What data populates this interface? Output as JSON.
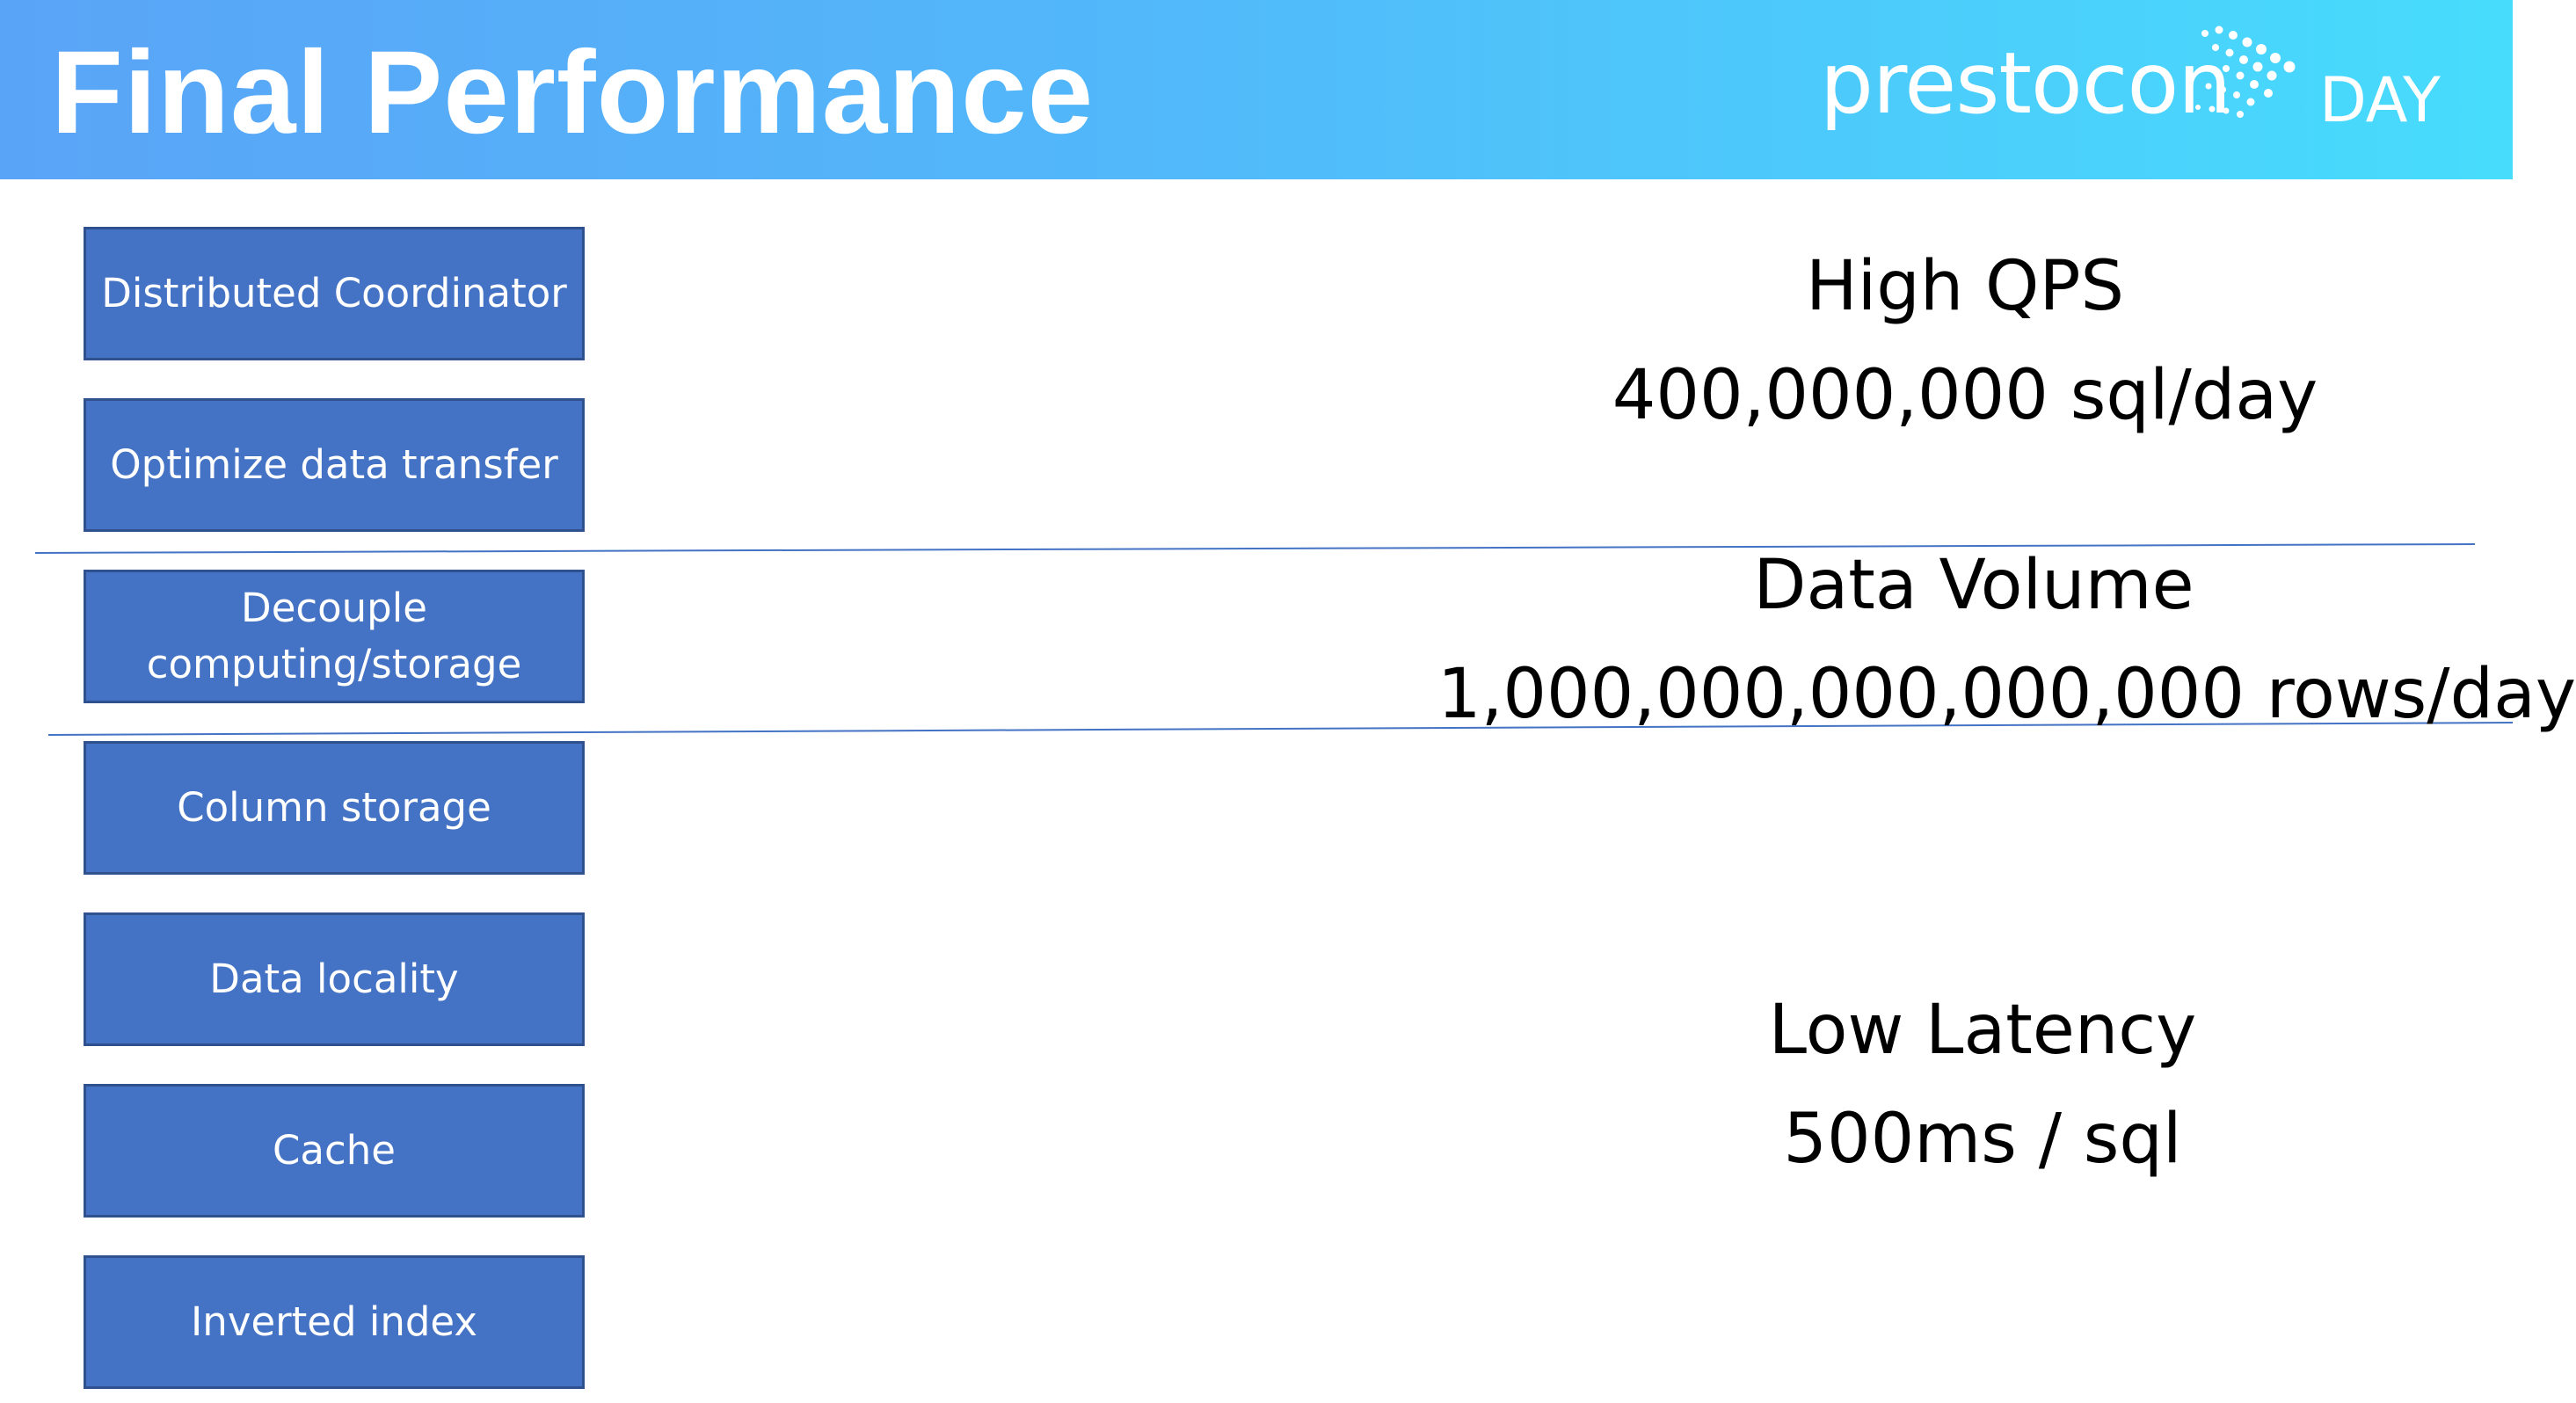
{
  "slide": {
    "title": "Final Performance"
  },
  "logo": {
    "wordmark": "prestocon",
    "suffix": "DAY",
    "icon": "dot-cluster-icon"
  },
  "techniques": [
    "Distributed Coordinator",
    "Optimize data transfer",
    "Decouple computing/storage",
    "Column storage",
    "Data locality",
    "Cache",
    "Inverted index"
  ],
  "metrics": [
    {
      "label": "High QPS",
      "value": "400,000,000 sql/day"
    },
    {
      "label": "Data Volume",
      "value": "1,000,000,000,000,000 rows/day"
    },
    {
      "label": "Low Latency",
      "value": "500ms / sql"
    }
  ],
  "colors": {
    "header_gradient_start": "#5aa4f7",
    "header_gradient_end": "#47dcfc",
    "box_fill": "#4472c4",
    "box_border": "#2f528f",
    "divider_line": "#4472c4"
  }
}
